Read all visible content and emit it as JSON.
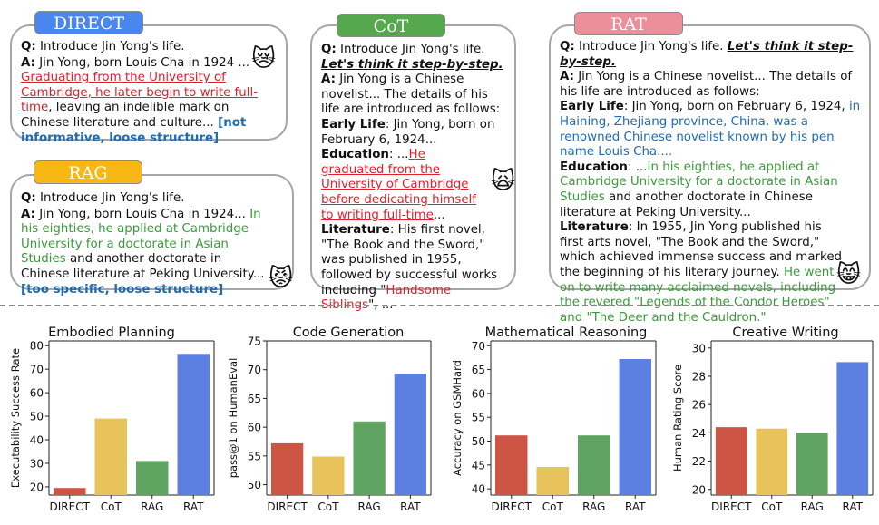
{
  "panels": {
    "direct": {
      "tag": "DIRECT",
      "color": "#4a86f0",
      "q_label": "Q:",
      "question": "Introduce Jin Yong's life.",
      "a_label": "A:",
      "a_text": "Jin Yong, born Louis Cha in 1924 ...",
      "red_text": "Graduating from the University of Cambridge, he later begin to write full-time",
      "tail_text": ", leaving an indelible mark on Chinese literature and culture...",
      "note": "[not informative, loose structure]",
      "emoji_icon": "crying-cat-face-icon",
      "emoji": "😿"
    },
    "rag": {
      "tag": "RAG",
      "color": "#f7b715",
      "q_label": "Q:",
      "question": "Introduce Jin Yong's life.",
      "a_label": "A:",
      "a_text": "Jin Yong, born Louis Cha in 1924...",
      "green_text": "In his eighties, he applied at Cambridge University for a doctorate in Asian Studies",
      "tail_text": " and another doctorate in Chinese literature at Peking University...",
      "note": "[too specific, loose structure]",
      "emoji_icon": "pouting-cat-face-icon",
      "emoji": "😾"
    },
    "cot": {
      "tag": "CoT",
      "color": "#55a84d",
      "q_label": "Q:",
      "question": "Introduce Jin Yong's life.",
      "prompt": "Let's think it step-by-step.",
      "a_label": "A:",
      "a_text": "Jin Yong is a Chinese novelist... The details of his life are introduced as follows:",
      "early_label": "Early Life",
      "early_text": ": Jin Yong, born on February 6, 1924...",
      "edu_label": "Education",
      "edu_text": ": ...",
      "edu_red": "He graduated from the University of Cambridge before dedicating himself to writing full-time",
      "edu_tail": "...",
      "lit_label": "Literature",
      "lit_text": ": His first novel, \"The Book and the Sword,\" was published in 1955, followed by successful works including \"",
      "lit_red": "Handsome Siblings",
      "lit_tail": "\", ...",
      "emoji_icon": "weary-cat-face-icon",
      "emoji": "🙀"
    },
    "rat": {
      "tag": "RAT",
      "color": "#ec8f9a",
      "q_label": "Q:",
      "question": "Introduce Jin Yong's life.",
      "prompt": "Let's think it step-by-step.",
      "a_label": "A:",
      "a_text": "Jin Yong is a Chinese novelist... The details of his life are introduced as follows:",
      "early_label": "Early Life",
      "early_text": ": Jin Yong, born on February 6, 1924, ",
      "early_blue": "in Haining, Zhejiang province, China, was a renowned Chinese novelist known by his pen name Louis Cha....",
      "edu_label": "Education",
      "edu_text": ": ...",
      "edu_green": "In his eighties, he applied at Cambridge University for a doctorate in Asian Studies",
      "edu_tail": " and another doctorate in Chinese literature at Peking University...",
      "lit_label": "Literature",
      "lit_text": ": In 1955, Jin Yong published his first arts novel, \"The Book and the Sword,\" which achieved immense success and marked the beginning of his literary journey. ",
      "lit_green": "He went on to write many acclaimed novels, including the revered \"Legends of the Condor Heroes\" and \"The Deer and the Cauldron.\"",
      "emoji_icon": "smiling-cat-face-icon",
      "emoji": "😸"
    }
  },
  "chart_data": [
    {
      "type": "bar",
      "title": "Embodied Planning",
      "categories": [
        "DIRECT",
        "CoT",
        "RAG",
        "RAT"
      ],
      "values": [
        19.5,
        49,
        31,
        76.5
      ],
      "colors": [
        "#cc5544",
        "#e8c25a",
        "#5fa460",
        "#5b80e1"
      ],
      "xlabel": "",
      "ylabel": "Executability Success Rate",
      "ylim": [
        16.5,
        82
      ],
      "yticks": [
        20,
        30,
        40,
        50,
        60,
        70,
        80
      ]
    },
    {
      "type": "bar",
      "title": "Code Generation",
      "categories": [
        "DIRECT",
        "CoT",
        "RAG",
        "RAT"
      ],
      "values": [
        57.2,
        54.9,
        61.0,
        69.3
      ],
      "colors": [
        "#cc5544",
        "#e8c25a",
        "#5fa460",
        "#5b80e1"
      ],
      "xlabel": "",
      "ylabel": "pass@1 on HumanEval",
      "ylim": [
        48.2,
        75
      ],
      "yticks": [
        50,
        55,
        60,
        65,
        70,
        75
      ]
    },
    {
      "type": "bar",
      "title": "Mathematical Reasoning",
      "categories": [
        "DIRECT",
        "CoT",
        "RAG",
        "RAT"
      ],
      "values": [
        51.2,
        44.6,
        51.2,
        67.2
      ],
      "colors": [
        "#cc5544",
        "#e8c25a",
        "#5fa460",
        "#5b80e1"
      ],
      "xlabel": "",
      "ylabel": "Accuracy on GSMHard",
      "ylim": [
        38.7,
        71
      ],
      "yticks": [
        40,
        45,
        50,
        55,
        60,
        65,
        70
      ]
    },
    {
      "type": "bar",
      "title": "Creative Writing",
      "categories": [
        "DIRECT",
        "CoT",
        "RAG",
        "RAT"
      ],
      "values": [
        24.4,
        24.3,
        24.0,
        29.0
      ],
      "colors": [
        "#cc5544",
        "#e8c25a",
        "#5fa460",
        "#5b80e1"
      ],
      "xlabel": "",
      "ylabel": "Human Rating Score",
      "ylim": [
        19.6,
        30.5
      ],
      "yticks": [
        20,
        22,
        24,
        26,
        28,
        30
      ]
    }
  ]
}
